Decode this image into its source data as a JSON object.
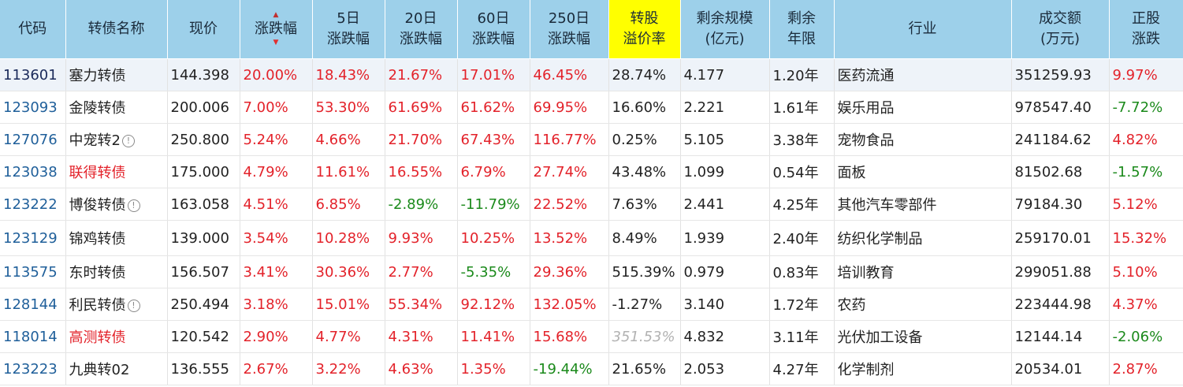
{
  "header": {
    "code": "代码",
    "name": "转债名称",
    "price": "现价",
    "change_pct": "涨跌幅",
    "d5_line1": "5日",
    "d5_line2": "涨跌幅",
    "d20_line1": "20日",
    "d20_line2": "涨跌幅",
    "d60_line1": "60日",
    "d60_line2": "涨跌幅",
    "d250_line1": "250日",
    "d250_line2": "涨跌幅",
    "premium_line1": "转股",
    "premium_line2": "溢价率",
    "scale_line1": "剩余规模",
    "scale_line2": "(亿元)",
    "years_line1": "剩余",
    "years_line2": "年限",
    "industry": "行业",
    "volume_line1": "成交额",
    "volume_line2": "(万元)",
    "stock_line1": "正股",
    "stock_line2": "涨跌",
    "sort_up_icon": "▲",
    "sort_down_icon": "▼"
  },
  "rows": [
    {
      "code": "113601",
      "name": "塞力转债",
      "info": false,
      "name_red": false,
      "price": "144.398",
      "chg": "20.00%",
      "d5": "18.43%",
      "d20": "21.67%",
      "d60": "17.01%",
      "d250": "46.45%",
      "premium": "28.74%",
      "scale": "4.177",
      "years": "1.20年",
      "industry": "医药流通",
      "volume": "351259.93",
      "stock": "9.97%"
    },
    {
      "code": "123093",
      "name": "金陵转债",
      "info": false,
      "name_red": false,
      "price": "200.006",
      "chg": "7.00%",
      "d5": "53.30%",
      "d20": "61.69%",
      "d60": "61.62%",
      "d250": "69.95%",
      "premium": "16.60%",
      "scale": "2.221",
      "years": "1.61年",
      "industry": "娱乐用品",
      "volume": "978547.40",
      "stock": "-7.72%"
    },
    {
      "code": "127076",
      "name": "中宠转2",
      "info": true,
      "name_red": false,
      "price": "250.800",
      "chg": "5.24%",
      "d5": "4.66%",
      "d20": "21.70%",
      "d60": "67.43%",
      "d250": "116.77%",
      "premium": "0.25%",
      "scale": "5.105",
      "years": "3.38年",
      "industry": "宠物食品",
      "volume": "241184.62",
      "stock": "4.82%"
    },
    {
      "code": "123038",
      "name": "联得转债",
      "info": false,
      "name_red": true,
      "price": "175.000",
      "chg": "4.79%",
      "d5": "11.61%",
      "d20": "16.55%",
      "d60": "6.79%",
      "d250": "27.74%",
      "premium": "43.48%",
      "scale": "1.099",
      "years": "0.54年",
      "industry": "面板",
      "volume": "81502.68",
      "stock": "-1.57%"
    },
    {
      "code": "123222",
      "name": "博俊转债",
      "info": true,
      "name_red": false,
      "price": "163.058",
      "chg": "4.51%",
      "d5": "6.85%",
      "d20": "-2.89%",
      "d60": "-11.79%",
      "d250": "22.52%",
      "premium": "7.63%",
      "scale": "2.441",
      "years": "4.25年",
      "industry": "其他汽车零部件",
      "volume": "79184.30",
      "stock": "5.12%"
    },
    {
      "code": "123129",
      "name": "锦鸡转债",
      "info": false,
      "name_red": false,
      "price": "139.000",
      "chg": "3.54%",
      "d5": "10.28%",
      "d20": "9.93%",
      "d60": "10.25%",
      "d250": "13.52%",
      "premium": "8.49%",
      "scale": "1.939",
      "years": "2.40年",
      "industry": "纺织化学制品",
      "volume": "259170.01",
      "stock": "15.32%"
    },
    {
      "code": "113575",
      "name": "东时转债",
      "info": false,
      "name_red": false,
      "price": "156.507",
      "chg": "3.41%",
      "d5": "30.36%",
      "d20": "2.77%",
      "d60": "-5.35%",
      "d250": "29.36%",
      "premium": "515.39%",
      "scale": "0.979",
      "years": "0.83年",
      "industry": "培训教育",
      "volume": "299051.88",
      "stock": "5.10%"
    },
    {
      "code": "128144",
      "name": "利民转债",
      "info": true,
      "name_red": false,
      "price": "250.494",
      "chg": "3.18%",
      "d5": "15.01%",
      "d20": "55.34%",
      "d60": "92.12%",
      "d250": "132.05%",
      "premium": "-1.27%",
      "scale": "3.140",
      "years": "1.72年",
      "industry": "农药",
      "volume": "223444.98",
      "stock": "4.37%"
    },
    {
      "code": "118014",
      "name": "高测转债",
      "info": false,
      "name_red": true,
      "price": "120.542",
      "chg": "2.90%",
      "d5": "4.77%",
      "d20": "4.31%",
      "d60": "11.41%",
      "d250": "15.68%",
      "premium": "351.53%",
      "premium_grey": true,
      "scale": "4.832",
      "years": "3.11年",
      "industry": "光伏加工设备",
      "volume": "12144.14",
      "stock": "-2.06%"
    },
    {
      "code": "123223",
      "name": "九典转02",
      "info": false,
      "name_red": false,
      "price": "136.555",
      "chg": "2.67%",
      "d5": "3.22%",
      "d20": "4.63%",
      "d60": "1.35%",
      "d250": "-19.44%",
      "premium": "21.65%",
      "scale": "2.053",
      "years": "4.27年",
      "industry": "化学制剂",
      "volume": "20534.01",
      "stock": "2.87%"
    }
  ],
  "info_icon": "!",
  "colors": {
    "header_bg": "#9dd0ea",
    "highlight": "#ffff00",
    "up": "#e3222a",
    "down": "#1b8a1b",
    "code": "#1f5f9a"
  }
}
